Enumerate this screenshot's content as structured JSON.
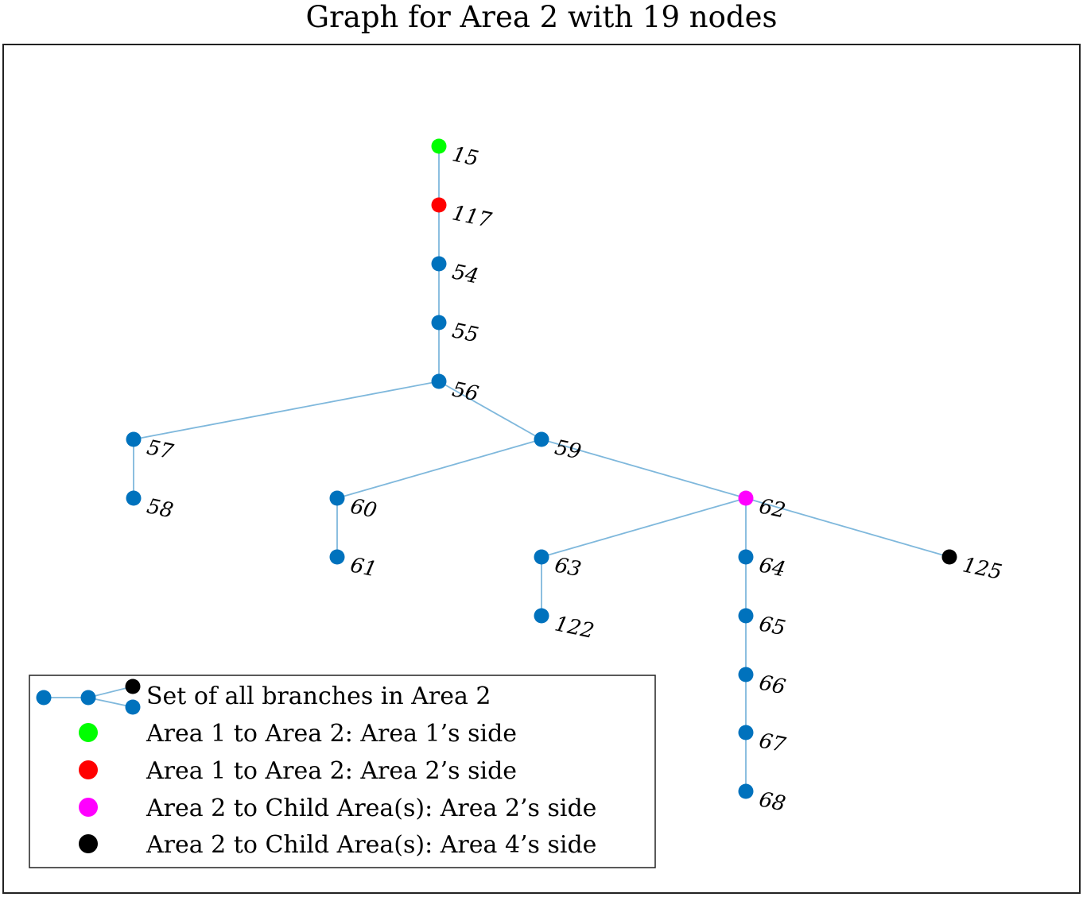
{
  "title": "Graph for Area 2 with 19 nodes",
  "colors": {
    "edge": "#7fb8dc",
    "regular": "#0072bd",
    "area1_side": "#00ff00",
    "area2_side": "#ff0000",
    "child_area2_side": "#ff00ff",
    "child_area4_side": "#000000",
    "frame": "#222222"
  },
  "diagram": {
    "nodes": [
      {
        "id": "15",
        "type": "area1_side"
      },
      {
        "id": "117",
        "type": "area2_side"
      },
      {
        "id": "54",
        "type": "regular"
      },
      {
        "id": "55",
        "type": "regular"
      },
      {
        "id": "56",
        "type": "regular"
      },
      {
        "id": "57",
        "type": "regular"
      },
      {
        "id": "58",
        "type": "regular"
      },
      {
        "id": "59",
        "type": "regular"
      },
      {
        "id": "60",
        "type": "regular"
      },
      {
        "id": "61",
        "type": "regular"
      },
      {
        "id": "62",
        "type": "child_area2_side"
      },
      {
        "id": "63",
        "type": "regular"
      },
      {
        "id": "122",
        "type": "regular"
      },
      {
        "id": "64",
        "type": "regular"
      },
      {
        "id": "65",
        "type": "regular"
      },
      {
        "id": "66",
        "type": "regular"
      },
      {
        "id": "67",
        "type": "regular"
      },
      {
        "id": "68",
        "type": "regular"
      },
      {
        "id": "125",
        "type": "child_area4_side"
      }
    ],
    "edges": [
      [
        "15",
        "117"
      ],
      [
        "117",
        "54"
      ],
      [
        "54",
        "55"
      ],
      [
        "55",
        "56"
      ],
      [
        "56",
        "57"
      ],
      [
        "57",
        "58"
      ],
      [
        "56",
        "59"
      ],
      [
        "59",
        "60"
      ],
      [
        "60",
        "61"
      ],
      [
        "59",
        "62"
      ],
      [
        "62",
        "63"
      ],
      [
        "63",
        "122"
      ],
      [
        "62",
        "64"
      ],
      [
        "64",
        "65"
      ],
      [
        "65",
        "66"
      ],
      [
        "66",
        "67"
      ],
      [
        "67",
        "68"
      ],
      [
        "62",
        "125"
      ]
    ]
  },
  "legend": {
    "entries": [
      {
        "label": "Set of all branches in Area 2",
        "type": "branches"
      },
      {
        "label": "Area 1 to Area 2: Area 1’s side",
        "type": "area1_side"
      },
      {
        "label": "Area 1 to Area 2: Area 2’s side",
        "type": "area2_side"
      },
      {
        "label": "Area 2 to Child Area(s): Area 2’s side",
        "type": "child_area2_side"
      },
      {
        "label": "Area 2 to Child Area(s): Area 4’s side",
        "type": "child_area4_side"
      }
    ]
  }
}
